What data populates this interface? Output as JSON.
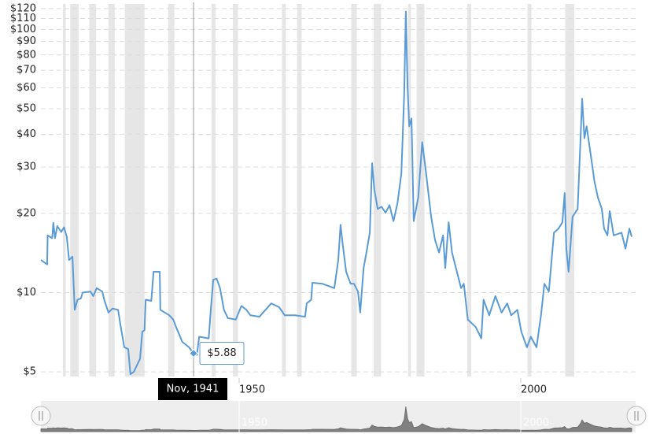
{
  "chart_data": {
    "type": "line",
    "log_scale": true,
    "grid": true,
    "xlim": [
      1914.8,
      2020.4
    ],
    "ylim": [
      4.8,
      125
    ],
    "xticks": [
      1950,
      2000
    ],
    "yticks": [
      {
        "value": 5,
        "label": "$5"
      },
      {
        "value": 10,
        "label": "$10"
      },
      {
        "value": 20,
        "label": "$20"
      },
      {
        "value": 30,
        "label": "$30"
      },
      {
        "value": 40,
        "label": "$40"
      },
      {
        "value": 50,
        "label": "$50"
      },
      {
        "value": 60,
        "label": "$60"
      },
      {
        "value": 70,
        "label": "$70"
      },
      {
        "value": 80,
        "label": "$80"
      },
      {
        "value": 90,
        "label": "$90"
      },
      {
        "value": 100,
        "label": "$100"
      },
      {
        "value": 110,
        "label": "$110"
      },
      {
        "value": 120,
        "label": "$120"
      }
    ],
    "recession_color": "#e6e6e6",
    "recessions": [
      [
        1918.7,
        1919.2
      ],
      [
        1920.0,
        1921.5
      ],
      [
        1923.4,
        1924.6
      ],
      [
        1926.8,
        1927.9
      ],
      [
        1929.7,
        1933.2
      ],
      [
        1937.4,
        1938.5
      ],
      [
        1945.1,
        1945.8
      ],
      [
        1948.9,
        1949.8
      ],
      [
        1957.6,
        1958.3
      ],
      [
        1960.3,
        1961.1
      ],
      [
        1969.9,
        1970.9
      ],
      [
        1973.9,
        1975.2
      ],
      [
        1980.0,
        1980.5
      ],
      [
        1981.5,
        1982.9
      ],
      [
        1990.5,
        1991.2
      ],
      [
        2001.2,
        2001.9
      ],
      [
        2007.9,
        2009.5
      ]
    ],
    "series": [
      {
        "color": "#5b9bd5",
        "x": [
          1914.8,
          1915.9,
          1916.0,
          1916.8,
          1917.0,
          1917.3,
          1917.7,
          1918.4,
          1918.9,
          1919.4,
          1919.8,
          1920.4,
          1920.8,
          1921.3,
          1921.9,
          1922.2,
          1923.6,
          1924.1,
          1924.7,
          1925.7,
          1926.1,
          1926.8,
          1927.5,
          1928.5,
          1928.9,
          1929.6,
          1930.3,
          1930.7,
          1931.3,
          1932.4,
          1932.8,
          1933.2,
          1933.4,
          1934.4,
          1934.8,
          1935.9,
          1936.0,
          1937.6,
          1938.3,
          1938.8,
          1939.4,
          1939.9,
          1941.1,
          1941.9,
          1942.5,
          1942.9,
          1944.6,
          1945.0,
          1945.4,
          1946.0,
          1946.6,
          1947.3,
          1948.0,
          1949.4,
          1950.4,
          1951.3,
          1952.0,
          1953.6,
          1955.7,
          1957.1,
          1958.1,
          1959.9,
          1961.7,
          1962.0,
          1962.8,
          1963.0,
          1964.8,
          1966.9,
          1967.6,
          1968.0,
          1968.4,
          1969.0,
          1969.8,
          1970.4,
          1971.1,
          1971.5,
          1972.1,
          1972.6,
          1973.2,
          1973.6,
          1974.0,
          1974.6,
          1975.3,
          1976.0,
          1976.7,
          1977.4,
          1978.1,
          1978.8,
          1979.3,
          1979.6,
          1979.9,
          1980.2,
          1980.6,
          1981.0,
          1981.8,
          1982.5,
          1983.2,
          1984.1,
          1984.8,
          1985.5,
          1986.2,
          1986.6,
          1987.2,
          1987.8,
          1988.5,
          1989.4,
          1989.9,
          1990.6,
          1992.0,
          1993.0,
          1993.4,
          1994.4,
          1995.5,
          1996.6,
          1997.6,
          1998.3,
          1999.4,
          2000.1,
          2001.1,
          2001.8,
          2002.8,
          2003.6,
          2004.2,
          2005.0,
          2005.9,
          2006.7,
          2007.4,
          2007.8,
          2008.1,
          2008.5,
          2009.2,
          2010.1,
          2010.6,
          2010.9,
          2011.3,
          2011.7,
          2012.6,
          2013.1,
          2013.7,
          2014.4,
          2014.8,
          2015.4,
          2015.8,
          2016.5,
          2017.9,
          2018.6,
          2019.3,
          2019.7
        ],
        "values": [
          13.3,
          12.8,
          16.5,
          16.1,
          18.4,
          16.1,
          17.9,
          17.0,
          17.7,
          16.3,
          13.3,
          13.7,
          8.6,
          9.4,
          9.5,
          10.0,
          10.1,
          9.7,
          10.4,
          10.1,
          9.3,
          8.4,
          8.7,
          8.6,
          7.6,
          6.2,
          6.1,
          4.9,
          5.0,
          5.6,
          7.1,
          7.2,
          9.4,
          9.3,
          12.0,
          12.0,
          8.6,
          8.2,
          7.9,
          7.4,
          6.9,
          6.5,
          6.2,
          5.88,
          5.8,
          6.8,
          6.7,
          8.8,
          11.2,
          11.3,
          10.4,
          8.6,
          8.0,
          7.9,
          8.9,
          8.6,
          8.2,
          8.1,
          9.1,
          8.8,
          8.2,
          8.2,
          8.1,
          9.1,
          9.4,
          10.9,
          10.8,
          10.4,
          13.3,
          18.1,
          15.2,
          12.0,
          10.8,
          10.8,
          10.1,
          8.4,
          12.4,
          14.2,
          16.9,
          31.0,
          24.7,
          20.8,
          21.2,
          20.1,
          21.5,
          18.7,
          21.8,
          28.3,
          56.6,
          117,
          60.5,
          42.9,
          45.9,
          18.7,
          23.0,
          37.3,
          28.3,
          19.4,
          15.8,
          14.2,
          16.5,
          12.4,
          18.5,
          14.2,
          12.4,
          10.4,
          10.8,
          7.9,
          7.4,
          6.7,
          9.4,
          8.2,
          9.7,
          8.4,
          9.1,
          8.2,
          8.6,
          7.1,
          6.2,
          6.8,
          6.2,
          8.2,
          10.8,
          10.1,
          16.9,
          17.5,
          18.5,
          23.9,
          14.7,
          12.0,
          19.4,
          20.8,
          37.3,
          54.6,
          38.6,
          42.9,
          31.4,
          26.4,
          23.0,
          20.8,
          17.5,
          16.5,
          20.4,
          16.5,
          16.9,
          14.7,
          17.5,
          16.3
        ]
      }
    ],
    "tooltip": {
      "x": 1941.9,
      "label": "Nov, 1941",
      "value": 5.88,
      "value_label": "$5.88"
    }
  }
}
